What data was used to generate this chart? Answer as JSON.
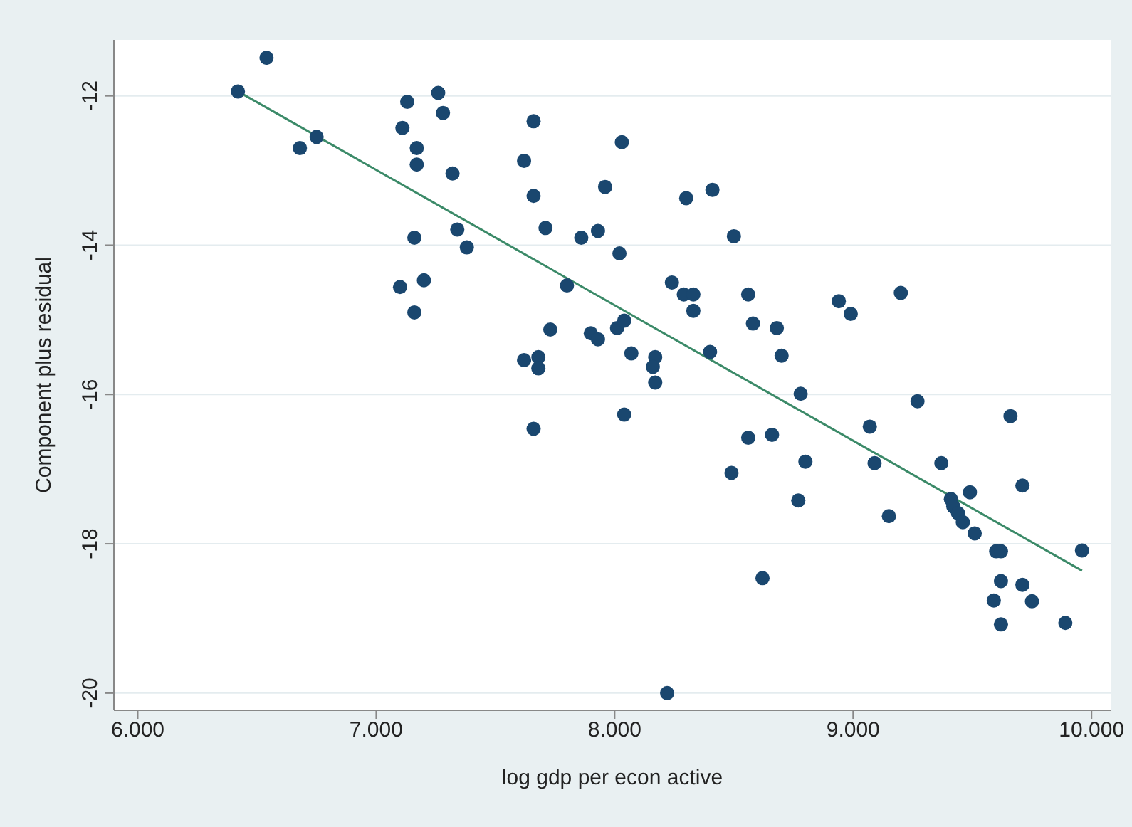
{
  "chart_data": {
    "type": "scatter",
    "xlabel": "log gdp per econ active",
    "ylabel": "Component plus residual",
    "xlim": [
      5.9,
      10.08
    ],
    "ylim": [
      -20.23,
      -11.25
    ],
    "xticks": [
      {
        "value": 6,
        "label": "6.000"
      },
      {
        "value": 7,
        "label": "7.000"
      },
      {
        "value": 8,
        "label": "8.000"
      },
      {
        "value": 9,
        "label": "9.000"
      },
      {
        "value": 10,
        "label": "10.000"
      }
    ],
    "yticks": [
      -12,
      -14,
      -16,
      -18,
      -20
    ],
    "grid": "y",
    "legend": false,
    "marker": "circle",
    "series": [
      {
        "color": "#1a476f",
        "x": [
          6.54,
          6.42,
          6.68,
          6.75,
          7.13,
          7.26,
          7.28,
          7.11,
          7.17,
          7.17,
          7.32,
          7.62,
          7.66,
          7.66,
          7.71,
          7.96,
          8.03,
          7.86,
          7.93,
          8.02,
          7.16,
          7.34,
          7.38,
          7.8,
          7.1,
          7.2,
          7.16,
          7.73,
          7.9,
          7.93,
          8.01,
          8.04,
          8.07,
          7.62,
          7.68,
          7.68,
          8.04,
          7.66,
          8.3,
          8.41,
          8.5,
          8.24,
          8.29,
          8.33,
          8.33,
          8.56,
          8.58,
          8.68,
          8.7,
          8.78,
          9.2,
          8.94,
          8.99,
          9.27,
          9.66,
          8.4,
          8.17,
          8.16,
          8.17,
          8.49,
          8.56,
          8.66,
          8.8,
          8.77,
          8.62,
          8.22,
          9.07,
          9.09,
          9.15,
          9.37,
          9.41,
          9.42,
          9.44,
          9.46,
          9.49,
          9.51,
          9.6,
          9.62,
          9.62,
          9.59,
          9.62,
          9.71,
          9.71,
          9.75,
          9.89,
          9.96
        ],
        "values": [
          -11.49,
          -11.94,
          -12.7,
          -12.55,
          -12.08,
          -11.96,
          -12.23,
          -12.43,
          -12.7,
          -12.92,
          -13.04,
          -12.87,
          -12.34,
          -13.34,
          -13.77,
          -13.22,
          -12.62,
          -13.9,
          -13.81,
          -14.11,
          -13.9,
          -13.79,
          -14.03,
          -14.54,
          -14.56,
          -14.47,
          -14.9,
          -15.13,
          -15.18,
          -15.26,
          -15.11,
          -15.01,
          -15.45,
          -15.54,
          -15.5,
          -15.65,
          -16.27,
          -16.46,
          -13.37,
          -13.26,
          -13.88,
          -14.5,
          -14.66,
          -14.66,
          -14.88,
          -14.66,
          -15.05,
          -15.11,
          -15.48,
          -15.99,
          -14.64,
          -14.75,
          -14.92,
          -16.09,
          -16.29,
          -15.43,
          -15.5,
          -15.63,
          -15.84,
          -17.05,
          -16.58,
          -16.54,
          -16.9,
          -17.42,
          -18.46,
          -20.0,
          -16.43,
          -16.92,
          -17.63,
          -16.92,
          -17.4,
          -17.5,
          -17.59,
          -17.71,
          -17.31,
          -17.86,
          -18.1,
          -18.1,
          -18.5,
          -18.76,
          -19.08,
          -17.22,
          -18.55,
          -18.77,
          -19.06,
          -18.09
        ]
      },
      {
        "type": "line",
        "color": "#3b8a68",
        "marker": "none",
        "line_style": "solid",
        "x": [
          6.42,
          9.96
        ],
        "values": [
          -11.94,
          -18.36
        ]
      }
    ]
  }
}
